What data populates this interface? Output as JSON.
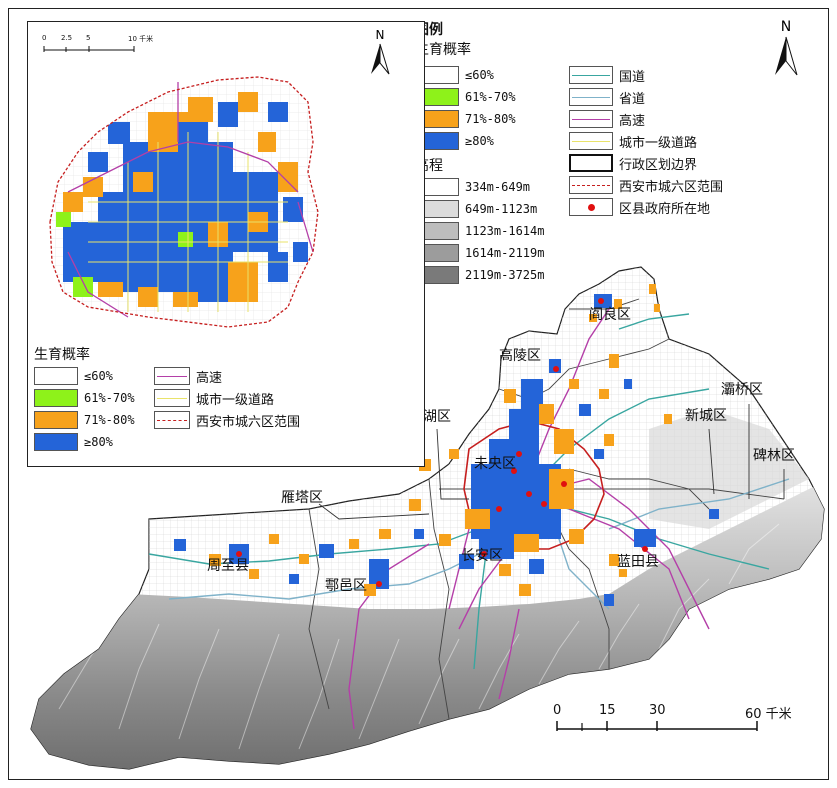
{
  "legend": {
    "title": "图例",
    "fertility_title": "生育概率",
    "fertility_classes": [
      {
        "label": "≤60%",
        "color": "#ffffff"
      },
      {
        "label": "61%-70%",
        "color": "#8ef21a"
      },
      {
        "label": "71%-80%",
        "color": "#f7a21b"
      },
      {
        "label": "≥80%",
        "color": "#2464d8"
      }
    ],
    "elevation_title": "高程",
    "elevation_classes": [
      {
        "label": "334m-649m",
        "color": "#ffffff"
      },
      {
        "label": "649m-1123m",
        "color": "#dcdcdc"
      },
      {
        "label": "1123m-1614m",
        "color": "#bdbdbd"
      },
      {
        "label": "1614m-2119m",
        "color": "#9c9c9c"
      },
      {
        "label": "2119m-3725m",
        "color": "#7a7a7a"
      }
    ],
    "line_items": [
      {
        "label": "国道",
        "color": "#39a6a0"
      },
      {
        "label": "省道",
        "color": "#7fb2c9"
      },
      {
        "label": "高速",
        "color": "#b43fa8"
      },
      {
        "label": "城市一级道路",
        "color": "#e9e36a"
      },
      {
        "label": "行政区划边界",
        "color": "#111111"
      },
      {
        "label": "西安市城六区范围",
        "color": "#c61f1f"
      },
      {
        "label": "区县政府所在地",
        "color": "#e01010"
      }
    ]
  },
  "inset_legend": {
    "title": "生育概率",
    "classes": [
      {
        "label": "≤60%",
        "color": "#ffffff"
      },
      {
        "label": "61%-70%",
        "color": "#8ef21a"
      },
      {
        "label": "71%-80%",
        "color": "#f7a21b"
      },
      {
        "label": "≥80%",
        "color": "#2464d8"
      }
    ],
    "lines": [
      {
        "label": "高速",
        "color": "#b43fa8"
      },
      {
        "label": "城市一级道路",
        "color": "#e9e36a"
      },
      {
        "label": "西安市城六区范围",
        "color": "#c61f1f"
      }
    ]
  },
  "inset_scale": {
    "ticks": [
      "0",
      "2.5",
      "5",
      "10 千米"
    ]
  },
  "main_scale": {
    "ticks": [
      "0",
      "15",
      "30",
      "60 千米"
    ]
  },
  "north": "N",
  "districts": [
    {
      "name": "阎良区"
    },
    {
      "name": "高陵区"
    },
    {
      "name": "灞桥区"
    },
    {
      "name": "新城区"
    },
    {
      "name": "碑林区"
    },
    {
      "name": "莲湖区"
    },
    {
      "name": "未央区"
    },
    {
      "name": "雁塔区"
    },
    {
      "name": "周至县"
    },
    {
      "name": "鄠邑区"
    },
    {
      "name": "长安区"
    },
    {
      "name": "蓝田县"
    }
  ]
}
